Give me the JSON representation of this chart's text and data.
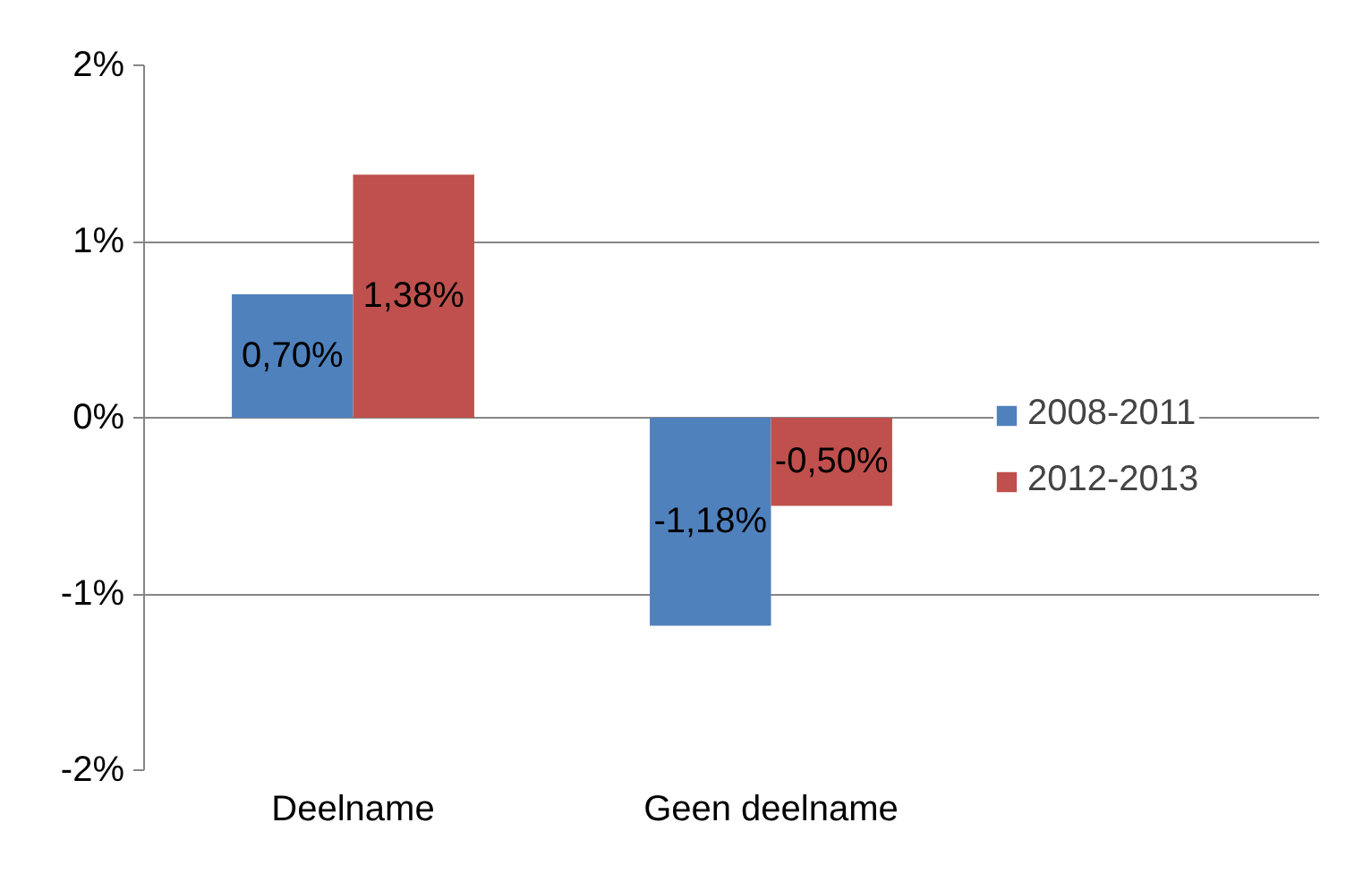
{
  "chart_data": {
    "type": "bar",
    "categories": [
      "Deelname",
      "Geen deelname"
    ],
    "series": [
      {
        "name": "2008-2011",
        "color": "#4f81bd",
        "values": [
          0.7,
          -1.18
        ],
        "value_labels": [
          "0,70%",
          "-1,18%"
        ]
      },
      {
        "name": "2012-2013",
        "color": "#c0504d",
        "values": [
          1.38,
          -0.5
        ],
        "value_labels": [
          "1,38%",
          "-0,50%"
        ]
      }
    ],
    "ylim": [
      -2,
      2
    ],
    "yticks": [
      {
        "value": -2,
        "label": "-2%"
      },
      {
        "value": -1,
        "label": "-1%"
      },
      {
        "value": 0,
        "label": "0%"
      },
      {
        "value": 1,
        "label": "1%"
      },
      {
        "value": 2,
        "label": "2%"
      }
    ],
    "grid": "y",
    "legend": "right"
  }
}
